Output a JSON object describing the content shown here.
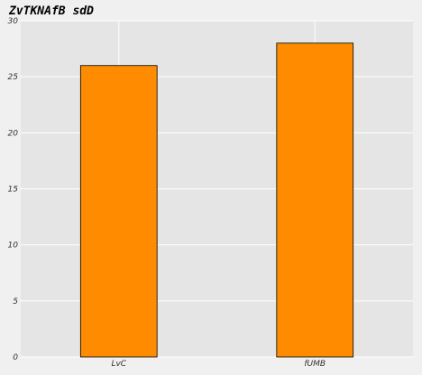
{
  "chart_data": {
    "type": "bar",
    "title": "ZvTKNAfB sdD",
    "xlabel": "",
    "ylabel": "",
    "categories": [
      "LvC",
      "fUMB"
    ],
    "values": [
      26,
      28
    ],
    "ylim": [
      0,
      30
    ],
    "yticks": [
      0,
      5,
      10,
      15,
      20,
      25,
      30
    ],
    "grid": true,
    "legend": "none",
    "colors": {
      "bar": "#ff8c00",
      "bar_edge": "#000000",
      "plot_background": "#e5e5e5",
      "page_background": "#f0f0f0",
      "grid": "#ffffff"
    }
  }
}
